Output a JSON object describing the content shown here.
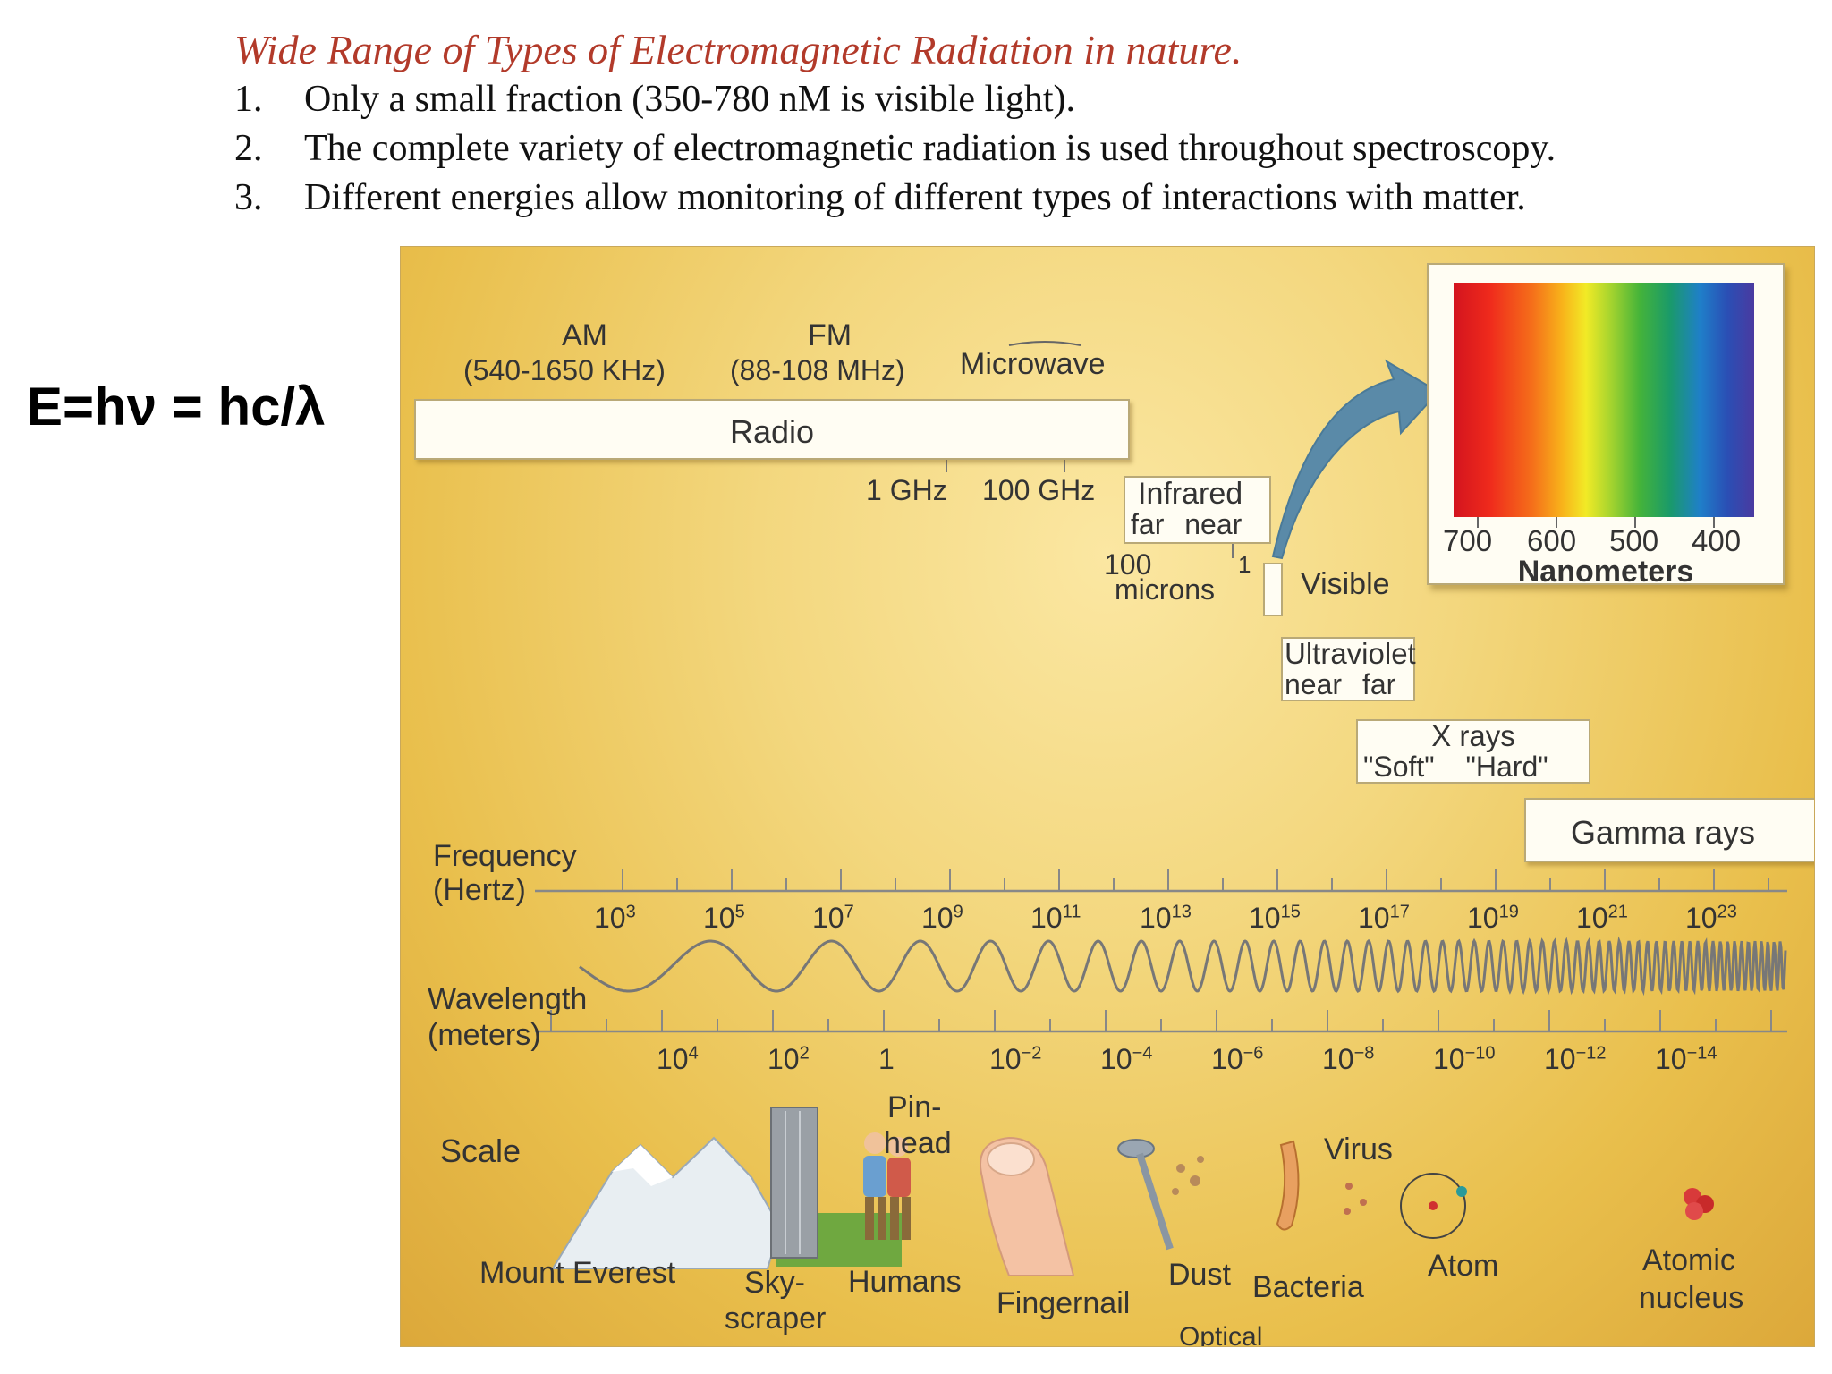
{
  "header": {
    "title": "Wide Range of Types of Electromagnetic Radiation in nature.",
    "items": [
      {
        "num": "1.",
        "text": "Only a small fraction (350-780 nM is visible light)."
      },
      {
        "num": "2.",
        "text": "The complete variety of electromagnetic radiation is used throughout spectroscopy."
      },
      {
        "num": "3.",
        "text": "Different energies allow monitoring of different types of interactions with matter."
      }
    ]
  },
  "formula": "E=hν = hc/λ",
  "diagram": {
    "am_label": "AM",
    "am_range": "(540-1650 KHz)",
    "fm_label": "FM",
    "fm_range": "(88-108 MHz)",
    "microwave_label": "Microwave",
    "radio_label": "Radio",
    "ghz1": "1 GHz",
    "ghz100": "100 GHz",
    "infrared": {
      "title": "Infrared",
      "sub": "far near"
    },
    "microns_100": "100",
    "microns_1": "1",
    "microns_label": "microns",
    "visible_label": "Visible",
    "ultraviolet": {
      "title": "Ultraviolet",
      "sub": "near far"
    },
    "xrays": {
      "title": "X rays",
      "sub": "\"Soft\" \"Hard\""
    },
    "gamma_label": "Gamma rays",
    "nanometers": {
      "ticks": [
        "700",
        "600",
        "500",
        "400"
      ],
      "title": "Nanometers"
    },
    "frequency_label": [
      "Frequency",
      "(Hertz)"
    ],
    "frequency_ticks": [
      [
        "10",
        "3"
      ],
      [
        "10",
        "5"
      ],
      [
        "10",
        "7"
      ],
      [
        "10",
        "9"
      ],
      [
        "10",
        "11"
      ],
      [
        "10",
        "13"
      ],
      [
        "10",
        "15"
      ],
      [
        "10",
        "17"
      ],
      [
        "10",
        "19"
      ],
      [
        "10",
        "21"
      ],
      [
        "10",
        "23"
      ]
    ],
    "wavelength_label": [
      "Wavelength",
      "(meters)"
    ],
    "wavelength_ticks": [
      [
        "10",
        "4"
      ],
      [
        "10",
        "2"
      ],
      [
        "1",
        ""
      ],
      [
        "10",
        "−2"
      ],
      [
        "10",
        "−4"
      ],
      [
        "10",
        "−6"
      ],
      [
        "10",
        "−8"
      ],
      [
        "10",
        "−10"
      ],
      [
        "10",
        "−12"
      ],
      [
        "10",
        "−14"
      ]
    ],
    "scale_label": "Scale",
    "pinhead": [
      "Pin-",
      "head"
    ],
    "objects": {
      "everest": "Mount Everest",
      "skyscraper": [
        "Sky-",
        "scraper"
      ],
      "humans": "Humans",
      "fingernail": "Fingernail",
      "dust": "Dust",
      "optical": "Optical",
      "bacteria": "Bacteria",
      "virus": "Virus",
      "atom": "Atom",
      "nucleus": [
        "Atomic",
        "nucleus"
      ]
    },
    "colors": {
      "background": "#f3d77e",
      "accent_title": "#b23a2a",
      "arrow": "#5a8aa8"
    }
  }
}
